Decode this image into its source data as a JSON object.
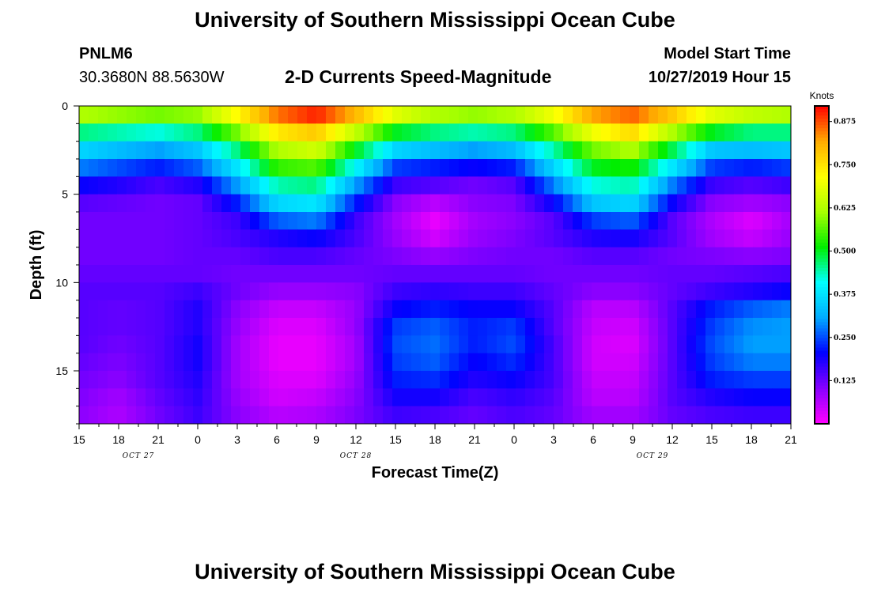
{
  "page": {
    "title_top": "University of Southern Mississippi Ocean Cube",
    "title_bottom": "University of Southern Mississippi Ocean Cube",
    "station_id": "PNLM6",
    "station_coords": "30.3680N 88.5630W",
    "product_title": "2-D Currents Speed-Magnitude",
    "model_start_label": "Model Start Time",
    "model_start_value": "10/27/2019 Hour 15"
  },
  "chart_data": {
    "type": "heatmap",
    "title": "2-D Currents Speed-Magnitude",
    "xlabel": "Forecast Time(Z)",
    "ylabel": "Depth (ft)",
    "x_tick_labels": [
      "15",
      "18",
      "21",
      "0",
      "3",
      "6",
      "9",
      "12",
      "15",
      "18",
      "21",
      "0",
      "3",
      "6",
      "9",
      "12",
      "15",
      "18",
      "21"
    ],
    "date_labels": [
      {
        "text": "OCT 27",
        "tick_index": 1.5
      },
      {
        "text": "OCT 28",
        "tick_index": 7
      },
      {
        "text": "OCT 29",
        "tick_index": 14.5
      }
    ],
    "x_start": "10/27/2019 15Z",
    "x_range_hours": [
      0,
      54
    ],
    "y_tick_labels": [
      "0",
      "5",
      "10",
      "15"
    ],
    "y_ticks": [
      0,
      5,
      10,
      15
    ],
    "ylim": [
      0,
      18
    ],
    "y_inverted": true,
    "colorbar": {
      "units": "Knots",
      "tick_labels": [
        "0.125",
        "0.250",
        "0.375",
        "0.500",
        "0.625",
        "0.750",
        "0.875"
      ],
      "ticks": [
        0.125,
        0.25,
        0.375,
        0.5,
        0.625,
        0.75,
        0.875
      ],
      "range": [
        0,
        0.92
      ],
      "colors": [
        "#ff00ff",
        "#8800ff",
        "#0000ff",
        "#00aaff",
        "#00ffff",
        "#00ee00",
        "#aaff00",
        "#ffff00",
        "#ffaa00",
        "#ff0000"
      ]
    },
    "depth_levels_ft": [
      0.5,
      1.5,
      2.5,
      3.5,
      4.5,
      5.5,
      6.5,
      7.5,
      8.5,
      9.5,
      10.5,
      11.5,
      12.5,
      13.5,
      14.5,
      15.5,
      16.5,
      17.5
    ],
    "hours": [
      0,
      3,
      6,
      9,
      12,
      15,
      18,
      21,
      24,
      27,
      30,
      33,
      36,
      39,
      42,
      45,
      48,
      51,
      54
    ],
    "speed_knots": [
      [
        0.62,
        0.6,
        0.58,
        0.6,
        0.72,
        0.85,
        0.9,
        0.8,
        0.68,
        0.62,
        0.6,
        0.62,
        0.7,
        0.82,
        0.86,
        0.78,
        0.68,
        0.64,
        0.62
      ],
      [
        0.46,
        0.44,
        0.42,
        0.46,
        0.58,
        0.74,
        0.78,
        0.64,
        0.5,
        0.46,
        0.44,
        0.46,
        0.56,
        0.7,
        0.76,
        0.62,
        0.5,
        0.46,
        0.46
      ],
      [
        0.36,
        0.33,
        0.3,
        0.34,
        0.46,
        0.62,
        0.66,
        0.5,
        0.36,
        0.33,
        0.3,
        0.33,
        0.44,
        0.58,
        0.62,
        0.48,
        0.34,
        0.33,
        0.34
      ],
      [
        0.28,
        0.25,
        0.22,
        0.26,
        0.38,
        0.54,
        0.56,
        0.4,
        0.24,
        0.22,
        0.2,
        0.22,
        0.36,
        0.5,
        0.52,
        0.38,
        0.24,
        0.22,
        0.24
      ],
      [
        0.2,
        0.18,
        0.15,
        0.18,
        0.3,
        0.44,
        0.46,
        0.3,
        0.16,
        0.14,
        0.12,
        0.14,
        0.28,
        0.42,
        0.44,
        0.28,
        0.16,
        0.14,
        0.16
      ],
      [
        0.14,
        0.13,
        0.12,
        0.13,
        0.22,
        0.36,
        0.38,
        0.22,
        0.1,
        0.06,
        0.1,
        0.11,
        0.2,
        0.34,
        0.36,
        0.2,
        0.1,
        0.08,
        0.1
      ],
      [
        0.12,
        0.12,
        0.12,
        0.13,
        0.16,
        0.26,
        0.28,
        0.16,
        0.08,
        0.02,
        0.08,
        0.1,
        0.14,
        0.24,
        0.26,
        0.14,
        0.07,
        0.03,
        0.08
      ],
      [
        0.12,
        0.12,
        0.12,
        0.13,
        0.15,
        0.18,
        0.2,
        0.15,
        0.09,
        0.04,
        0.09,
        0.11,
        0.14,
        0.18,
        0.19,
        0.14,
        0.08,
        0.05,
        0.09
      ],
      [
        0.12,
        0.12,
        0.12,
        0.13,
        0.13,
        0.15,
        0.15,
        0.13,
        0.11,
        0.09,
        0.11,
        0.12,
        0.12,
        0.14,
        0.14,
        0.12,
        0.11,
        0.1,
        0.11
      ],
      [
        0.13,
        0.13,
        0.13,
        0.13,
        0.12,
        0.12,
        0.12,
        0.12,
        0.13,
        0.13,
        0.13,
        0.13,
        0.12,
        0.12,
        0.12,
        0.13,
        0.13,
        0.14,
        0.15
      ],
      [
        0.14,
        0.14,
        0.14,
        0.16,
        0.12,
        0.09,
        0.09,
        0.1,
        0.16,
        0.17,
        0.16,
        0.16,
        0.13,
        0.1,
        0.1,
        0.13,
        0.16,
        0.18,
        0.2
      ],
      [
        0.14,
        0.13,
        0.14,
        0.18,
        0.1,
        0.05,
        0.05,
        0.09,
        0.2,
        0.22,
        0.2,
        0.2,
        0.14,
        0.06,
        0.06,
        0.14,
        0.22,
        0.26,
        0.28
      ],
      [
        0.14,
        0.13,
        0.14,
        0.18,
        0.09,
        0.03,
        0.03,
        0.09,
        0.24,
        0.26,
        0.22,
        0.24,
        0.14,
        0.05,
        0.04,
        0.14,
        0.24,
        0.29,
        0.3
      ],
      [
        0.14,
        0.12,
        0.14,
        0.19,
        0.08,
        0.02,
        0.02,
        0.08,
        0.25,
        0.27,
        0.22,
        0.25,
        0.15,
        0.04,
        0.03,
        0.14,
        0.25,
        0.3,
        0.3
      ],
      [
        0.13,
        0.11,
        0.14,
        0.19,
        0.08,
        0.02,
        0.02,
        0.08,
        0.24,
        0.26,
        0.2,
        0.23,
        0.15,
        0.04,
        0.04,
        0.14,
        0.24,
        0.28,
        0.28
      ],
      [
        0.12,
        0.1,
        0.14,
        0.18,
        0.08,
        0.03,
        0.03,
        0.09,
        0.22,
        0.23,
        0.18,
        0.2,
        0.15,
        0.05,
        0.05,
        0.14,
        0.22,
        0.24,
        0.24
      ],
      [
        0.11,
        0.08,
        0.13,
        0.17,
        0.09,
        0.04,
        0.05,
        0.1,
        0.19,
        0.19,
        0.15,
        0.17,
        0.14,
        0.06,
        0.06,
        0.14,
        0.18,
        0.2,
        0.2
      ],
      [
        0.1,
        0.07,
        0.12,
        0.16,
        0.1,
        0.06,
        0.07,
        0.11,
        0.16,
        0.15,
        0.13,
        0.15,
        0.13,
        0.08,
        0.08,
        0.13,
        0.15,
        0.16,
        0.16
      ]
    ]
  }
}
